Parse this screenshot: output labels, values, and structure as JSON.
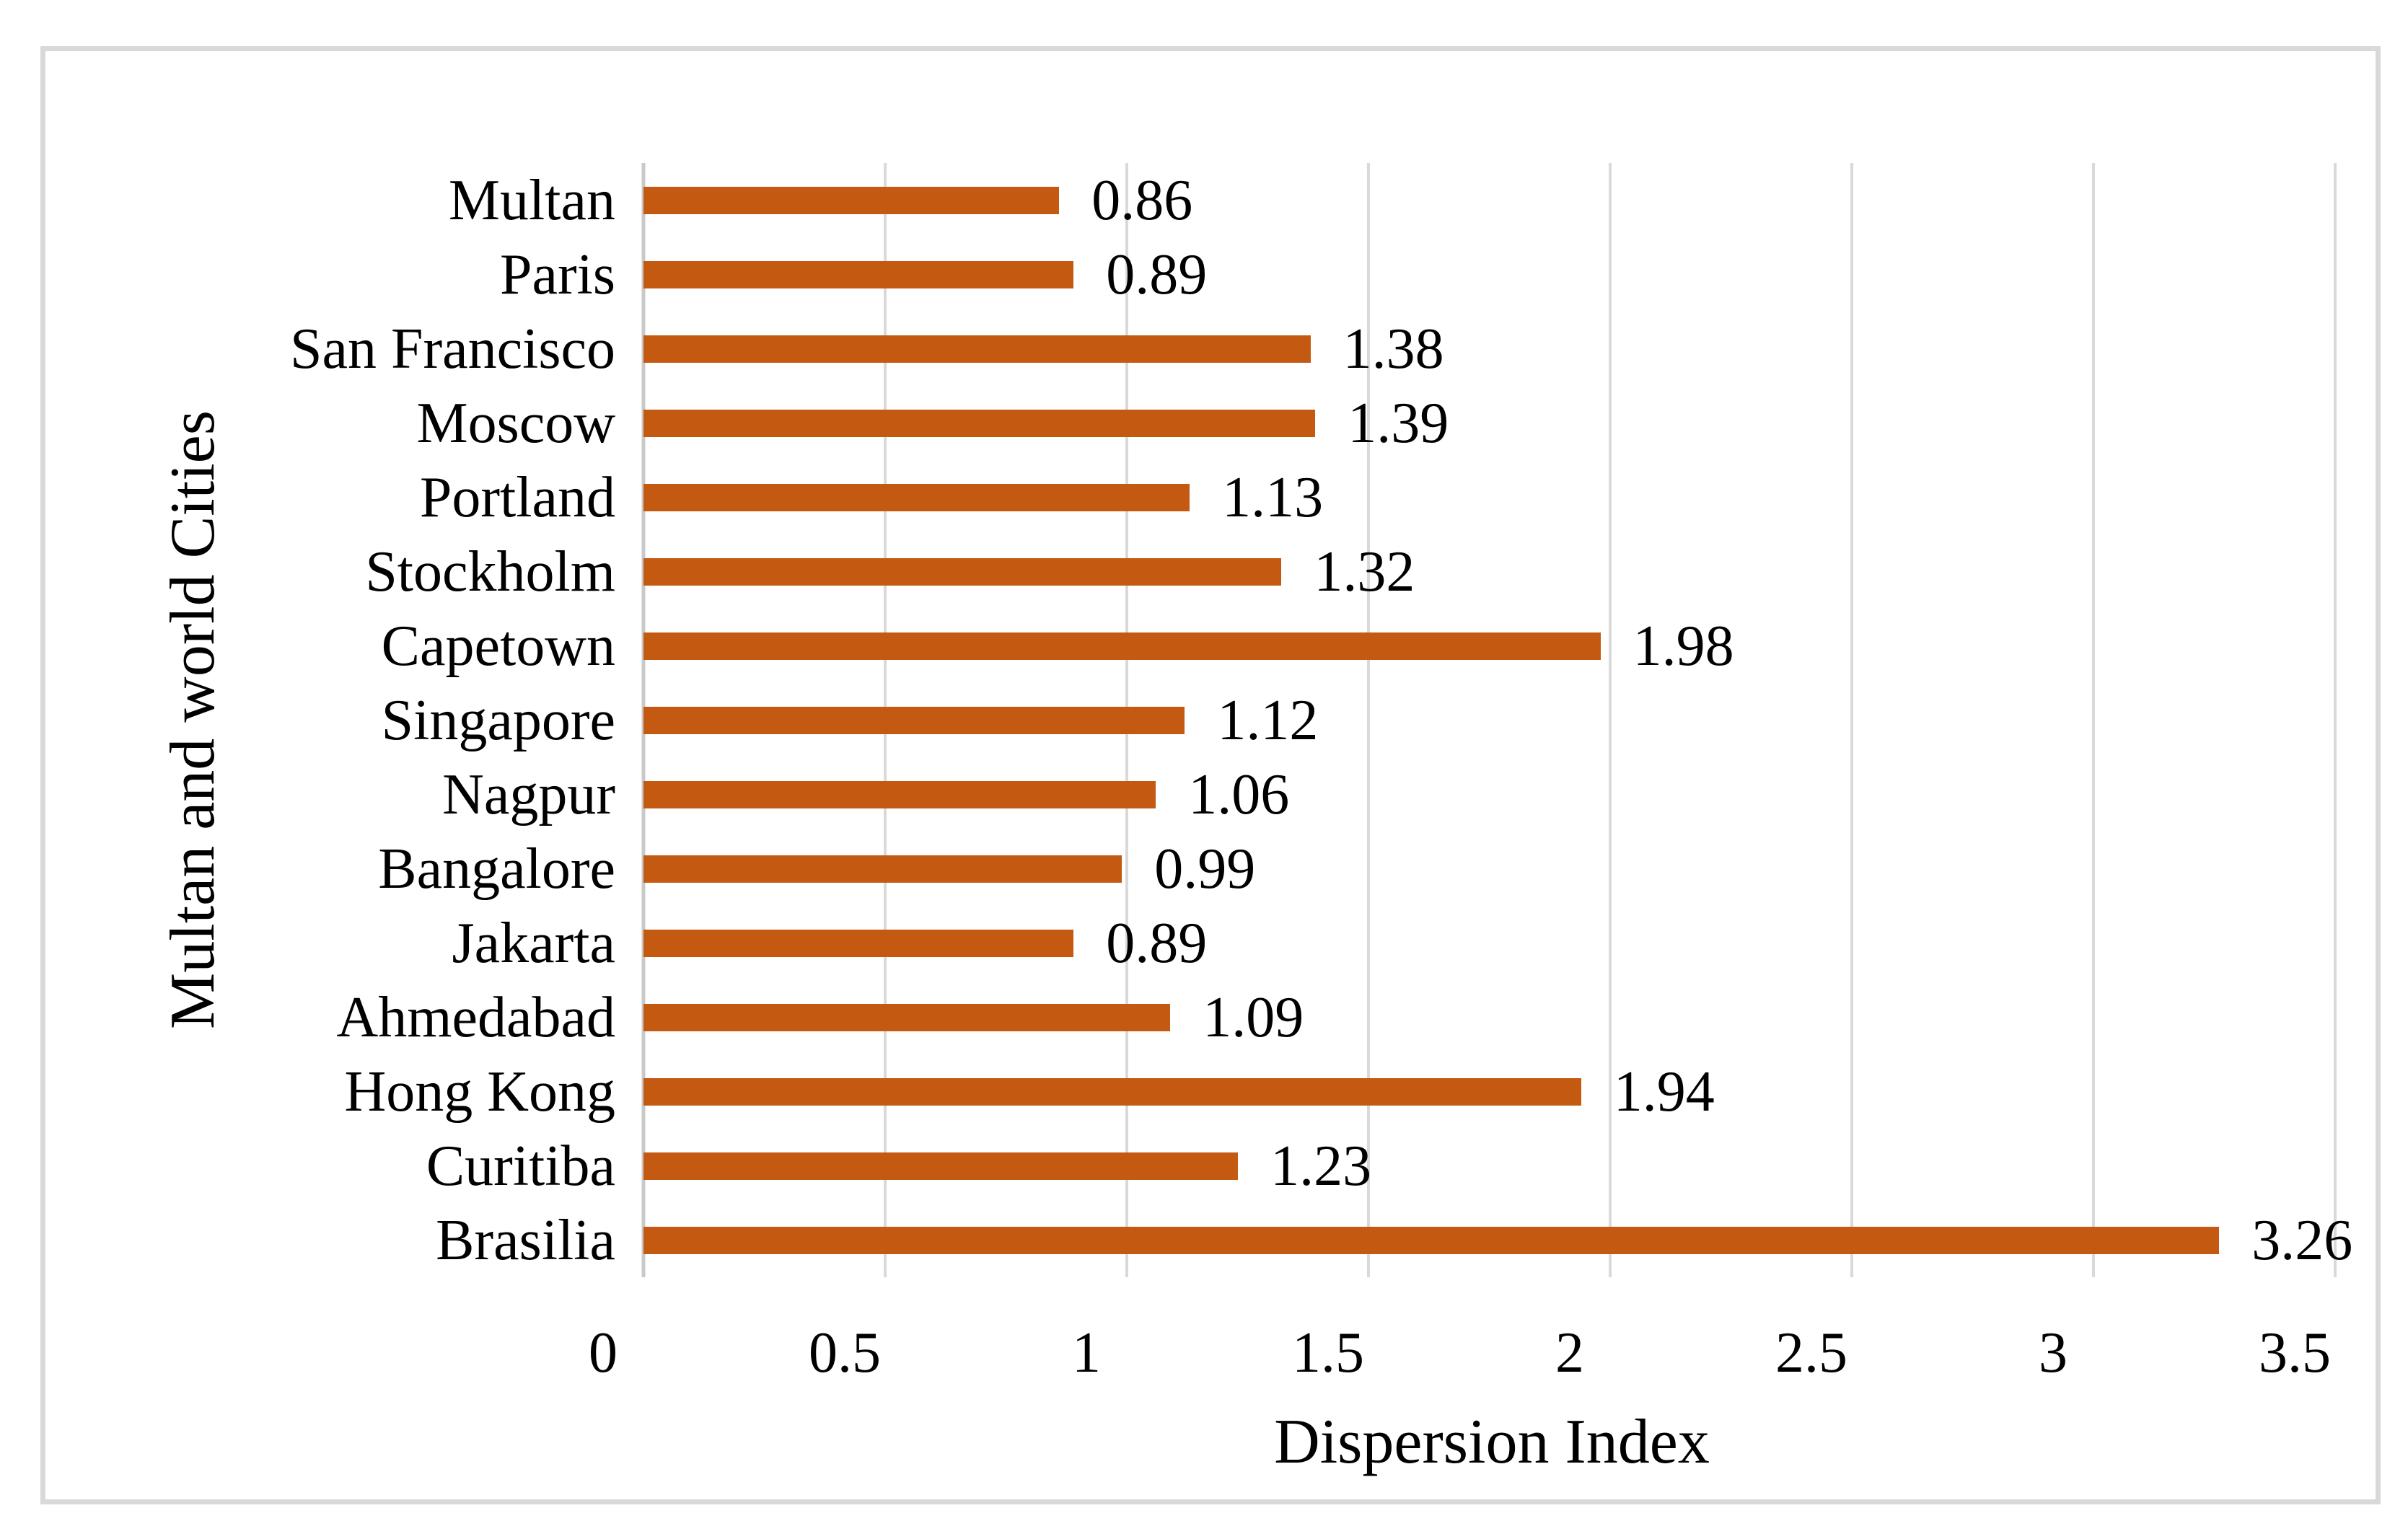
{
  "chart_data": {
    "type": "bar",
    "orientation": "horizontal",
    "title": "",
    "xlabel": "Dispersion Index",
    "ylabel": "Multan and world Cities",
    "categories": [
      "Multan",
      "Paris",
      "San Francisco",
      "Moscow",
      "Portland",
      "Stockholm",
      "Capetown",
      "Singapore",
      "Nagpur",
      "Bangalore",
      "Jakarta",
      "Ahmedabad",
      "Hong Kong",
      "Curitiba",
      "Brasilia"
    ],
    "values": [
      0.86,
      0.89,
      1.38,
      1.39,
      1.13,
      1.32,
      1.98,
      1.12,
      1.06,
      0.99,
      0.89,
      1.09,
      1.94,
      1.23,
      3.26
    ],
    "value_labels": [
      "0.86",
      "0.89",
      "1.38",
      "1.39",
      "1.13",
      "1.32",
      "1.98",
      "1.12",
      "1.06",
      "0.99",
      "0.89",
      "1.09",
      "1.94",
      "1.23",
      "3.26"
    ],
    "xlim": [
      0,
      3.5
    ],
    "xticks": [
      0,
      0.5,
      1,
      1.5,
      2,
      2.5,
      3,
      3.5
    ],
    "xtick_labels": [
      "0",
      "0.5",
      "1",
      "1.5",
      "2",
      "2.5",
      "3",
      "3.5"
    ],
    "grid": true,
    "legend": false,
    "bar_color": "#C45911",
    "gridline_color": "#D9D9D9",
    "axis_line_color": "#C9C9C9",
    "frame_color": "#D9D9D9",
    "text_color": "#000000"
  }
}
